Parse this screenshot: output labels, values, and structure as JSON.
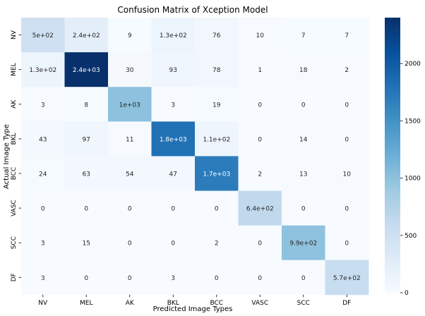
{
  "chart_data": {
    "type": "heatmap",
    "title": "Confusion Matrix of Xception Model",
    "xlabel": "Predicted Image Types",
    "ylabel": "Actual Image Type",
    "x_categories": [
      "NV",
      "MEL",
      "AK",
      "BKL",
      "BCC",
      "VASC",
      "SCC",
      "DF"
    ],
    "y_categories": [
      "NV",
      "MEL",
      "AK",
      "BKL",
      "BCC",
      "VASC",
      "SCC",
      "DF"
    ],
    "values": [
      [
        500,
        240,
        9,
        130,
        76,
        10,
        7,
        7
      ],
      [
        130,
        2400,
        30,
        93,
        78,
        1,
        18,
        2
      ],
      [
        3,
        8,
        1000,
        3,
        19,
        0,
        0,
        0
      ],
      [
        43,
        97,
        11,
        1800,
        110,
        0,
        14,
        0
      ],
      [
        24,
        63,
        54,
        47,
        1700,
        2,
        13,
        10
      ],
      [
        0,
        0,
        0,
        0,
        0,
        640,
        0,
        0
      ],
      [
        3,
        15,
        0,
        0,
        2,
        0,
        990,
        0
      ],
      [
        3,
        0,
        0,
        3,
        0,
        0,
        0,
        570
      ]
    ],
    "labels": [
      [
        "5e+02",
        "2.4e+02",
        "9",
        "1.3e+02",
        "76",
        "10",
        "7",
        "7"
      ],
      [
        "1.3e+02",
        "2.4e+03",
        "30",
        "93",
        "78",
        "1",
        "18",
        "2"
      ],
      [
        "3",
        "8",
        "1e+03",
        "3",
        "19",
        "0",
        "0",
        "0"
      ],
      [
        "43",
        "97",
        "11",
        "1.8e+03",
        "1.1e+02",
        "0",
        "14",
        "0"
      ],
      [
        "24",
        "63",
        "54",
        "47",
        "1.7e+03",
        "2",
        "13",
        "10"
      ],
      [
        "0",
        "0",
        "0",
        "0",
        "0",
        "6.4e+02",
        "0",
        "0"
      ],
      [
        "3",
        "15",
        "0",
        "0",
        "2",
        "0",
        "9.9e+02",
        "0"
      ],
      [
        "3",
        "0",
        "0",
        "3",
        "0",
        "0",
        "0",
        "5.7e+02"
      ]
    ],
    "colorbar": {
      "colormap": "Blues",
      "vmin": 0,
      "vmax": 2400,
      "ticks": [
        0,
        500,
        1000,
        1500,
        2000
      ],
      "tick_labels": [
        "0",
        "500",
        "1000",
        "1500",
        "2000"
      ]
    }
  }
}
